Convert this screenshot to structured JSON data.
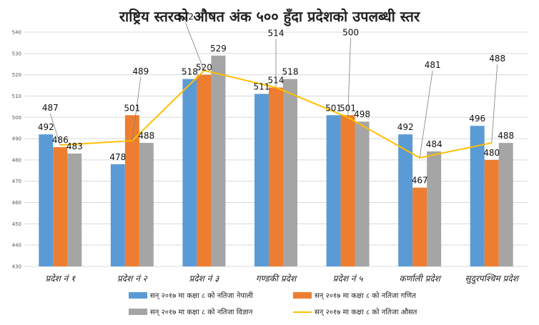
{
  "chart_data": {
    "type": "bar",
    "title": "राष्ट्रिय स्तरको औषत अंक ५०० हुँदा प्रदेशको उपलब्धी स्तर",
    "categories": [
      "प्रदेश नं १",
      "प्रदेश नं २",
      "प्रदेश नं ३",
      "गण्डकी प्रदेश",
      "प्रदेश नं ५",
      "कर्णाली प्रदेश",
      "सुदुरपश्चिम प्रदेश"
    ],
    "ylim": [
      430,
      540
    ],
    "yticks": [
      "430",
      "440",
      "450",
      "460",
      "470",
      "480",
      "490",
      "500",
      "510",
      "520",
      "530",
      "540"
    ],
    "grid": true,
    "legend_position": "bottom",
    "series": [
      {
        "name": "सन् २०१७ मा कक्षा ८ को नतिजा नेपाली",
        "kind": "bar",
        "color": "#5B9BD5",
        "values": [
          492,
          478,
          518,
          511,
          501,
          492,
          496
        ]
      },
      {
        "name": "सन् २०१७ मा कक्षा ८ को नतिजा गणित",
        "kind": "bar",
        "color": "#ED7D31",
        "values": [
          486,
          501,
          520,
          514,
          501,
          467,
          480
        ]
      },
      {
        "name": "सन् २०१७ मा कक्षा ८ को नतिजा विज्ञान",
        "kind": "bar",
        "color": "#A5A5A5",
        "values": [
          483,
          488,
          529,
          518,
          498,
          484,
          488
        ]
      },
      {
        "name": "सन् २०१७ मा कक्षा ८ को नतिजा औसत",
        "kind": "line",
        "color": "#FFC000",
        "values": [
          487,
          489,
          522,
          514,
          500,
          481,
          488
        ]
      }
    ]
  }
}
